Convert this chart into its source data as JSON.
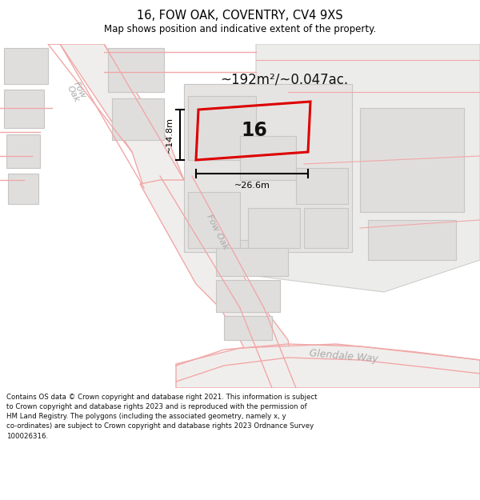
{
  "title": "16, FOW OAK, COVENTRY, CV4 9XS",
  "subtitle": "Map shows position and indicative extent of the property.",
  "area_label": "~192m²/~0.047ac.",
  "property_number": "16",
  "dim_width_label": "~26.6m",
  "dim_height_label": "~14.8m",
  "footer_lines": [
    "Contains OS data © Crown copyright and database right 2021. This information is subject",
    "to Crown copyright and database rights 2023 and is reproduced with the permission of",
    "HM Land Registry. The polygons (including the associated geometry, namely x, y",
    "co-ordinates) are subject to Crown copyright and database rights 2023 Ordnance Survey",
    "100026316."
  ],
  "map_bg": "#f2f0ee",
  "building_color": "#e0dedd",
  "road_line_color": "#f0a8a8",
  "property_outline_color": "#dd0000",
  "dim_line_color": "#000000",
  "title_color": "#000000",
  "street_label_color": "#aaaaaa",
  "white_bg": "#ffffff",
  "light_gray_block": "#e8e6e4",
  "dark_road_area": "#ebebeb"
}
